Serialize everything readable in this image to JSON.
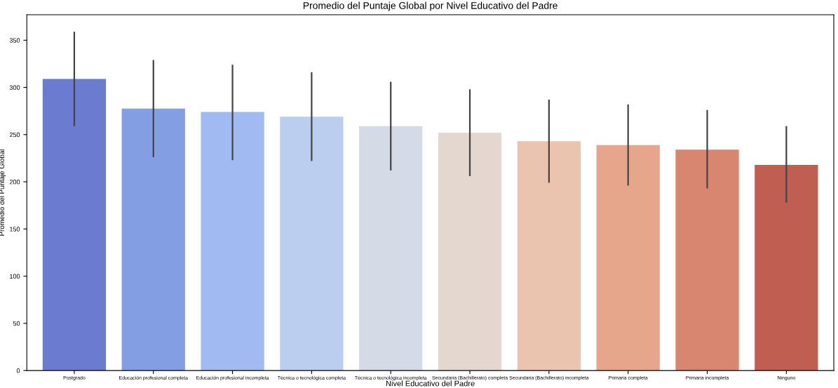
{
  "chart_data": {
    "type": "bar",
    "title": "Promedio del Puntaje Global por Nivel Educativo del Padre",
    "xlabel": "Nivel Educativo del Padre",
    "ylabel": "Promedio del Puntaje Global",
    "categories": [
      "Postgrado",
      "Educación profesional completa",
      "Educación profesional incompleta",
      "Técnica o tecnológica completa",
      "Técnica o tecnológica incompleta",
      "Secundaria (Bachillerato) completa",
      "Secundaria (Bachillerato) incompleta",
      "Primaria completa",
      "Primaria incompleta",
      "Ninguno"
    ],
    "values": [
      309,
      277.5,
      274,
      269,
      259,
      252,
      243,
      239,
      234,
      218
    ],
    "errors": [
      [
        259,
        359
      ],
      [
        226,
        329
      ],
      [
        223,
        324
      ],
      [
        222,
        316
      ],
      [
        212,
        306
      ],
      [
        206,
        298
      ],
      [
        199,
        287
      ],
      [
        196,
        282
      ],
      [
        193,
        276
      ],
      [
        178,
        259
      ]
    ],
    "colors": [
      "#6a7bd0",
      "#849ee3",
      "#a1baf1",
      "#bccef0",
      "#d4dae6",
      "#e4d7cf",
      "#ebc4b0",
      "#e5a68c",
      "#d98671",
      "#c15e52"
    ],
    "ylim": [
      0,
      377
    ],
    "yticks": [
      0,
      50,
      100,
      150,
      200,
      250,
      300,
      350
    ],
    "grid": false
  }
}
